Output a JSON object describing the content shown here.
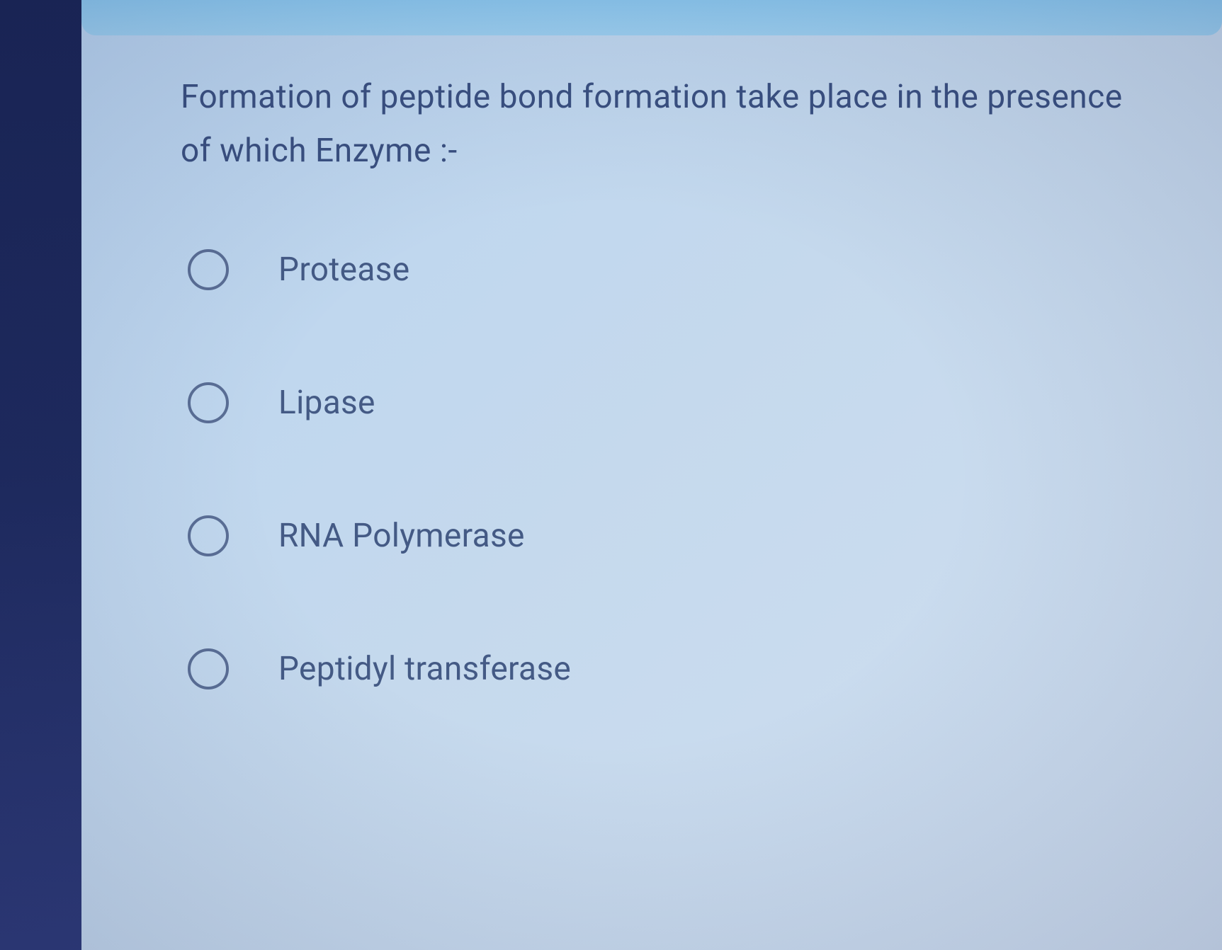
{
  "colors": {
    "sidebar_bg_top": "#1a2555",
    "sidebar_bg_bottom": "#2e3a78",
    "banner_bg": "#8dc9ef",
    "content_bg": "#c5d9ed",
    "text_color": "#3a5080",
    "option_text_color": "#445a85",
    "radio_border": "#5a6e95"
  },
  "typography": {
    "question_fontsize": 46,
    "option_fontsize": 46,
    "font_family": "sans-serif"
  },
  "question": {
    "text": "Formation of peptide bond formation take place in the presence of which Enzyme :-"
  },
  "options": [
    {
      "label": "Protease",
      "selected": false
    },
    {
      "label": "Lipase",
      "selected": false
    },
    {
      "label": "RNA Polymerase",
      "selected": false
    },
    {
      "label": "Peptidyl transferase",
      "selected": false
    }
  ]
}
